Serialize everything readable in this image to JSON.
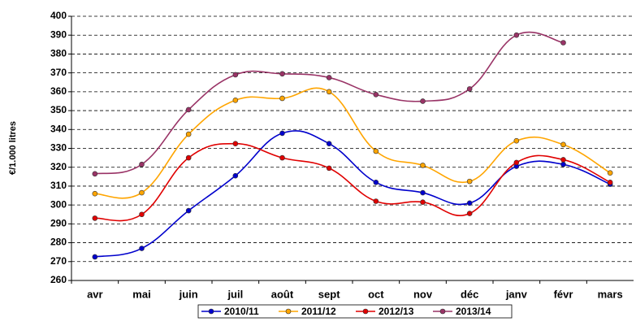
{
  "chart_data": {
    "type": "line",
    "y_label": "€/1.000 litres",
    "categories": [
      "avr",
      "mai",
      "juin",
      "juil",
      "août",
      "sept",
      "oct",
      "nov",
      "déc",
      "janv",
      "févr",
      "mars"
    ],
    "series": [
      {
        "name": "2010/11",
        "color": "#0000cc",
        "values": [
          272.5,
          277,
          297,
          315.5,
          338,
          332.5,
          312,
          306.5,
          301,
          320.5,
          321.5,
          311
        ]
      },
      {
        "name": "2011/12",
        "color": "#ffa500",
        "values": [
          306,
          306.5,
          337.5,
          355.5,
          356.5,
          360,
          328.5,
          321,
          312.5,
          334,
          332,
          317
        ]
      },
      {
        "name": "2012/13",
        "color": "#e00000",
        "values": [
          293,
          295,
          325,
          332.5,
          325,
          319.5,
          302,
          301.5,
          295.5,
          322.5,
          324,
          312
        ]
      },
      {
        "name": "2013/14",
        "color": "#993366",
        "values": [
          316.5,
          321.5,
          350.5,
          369,
          369.5,
          367.5,
          358.5,
          355,
          361.5,
          390,
          386,
          null
        ]
      }
    ],
    "ylim": [
      260,
      400
    ],
    "yticks": [
      260,
      270,
      280,
      290,
      300,
      310,
      320,
      330,
      340,
      350,
      360,
      370,
      380,
      390,
      400
    ],
    "grid": true,
    "legend": "bottom"
  }
}
